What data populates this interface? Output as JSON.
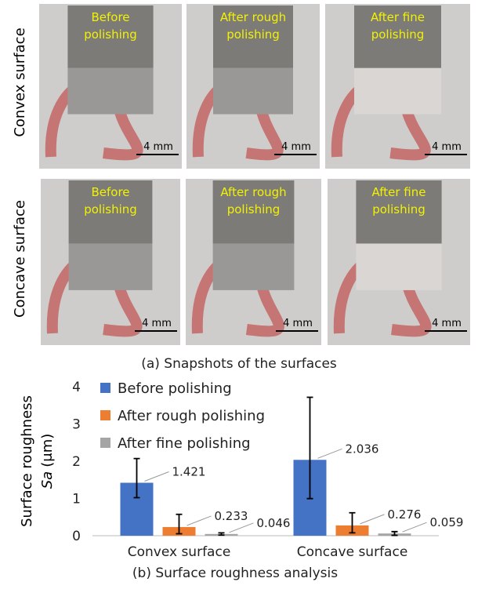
{
  "photos": {
    "caption": "(a) Snapshots of the surfaces",
    "rows": [
      {
        "label": "Convex surface",
        "images": [
          {
            "label_lines": [
              "Before",
              "polishing"
            ],
            "scale": "4 mm"
          },
          {
            "label_lines": [
              "After rough",
              "polishing"
            ],
            "scale": "4 mm"
          },
          {
            "label_lines": [
              "After fine",
              "polishing"
            ],
            "scale": "4 mm"
          }
        ]
      },
      {
        "label": "Concave surface",
        "images": [
          {
            "label_lines": [
              "Before",
              "polishing"
            ],
            "scale": "4 mm"
          },
          {
            "label_lines": [
              "After rough",
              "polishing"
            ],
            "scale": "4 mm"
          },
          {
            "label_lines": [
              "After fine",
              "polishing"
            ],
            "scale": "4 mm"
          }
        ]
      }
    ]
  },
  "chart_data": {
    "type": "bar",
    "caption": "(b) Surface roughness analysis",
    "ylabel": {
      "line1": "Surface roughness",
      "symbol": "Sa",
      "unit": "(μm)"
    },
    "categories": [
      "Convex surface",
      "Concave surface"
    ],
    "series": [
      {
        "name": "Before polishing",
        "color": "#4472c4",
        "values": [
          1.421,
          2.036
        ],
        "errors_minus": [
          0.4,
          1.04
        ],
        "errors_plus": [
          0.65,
          1.68
        ]
      },
      {
        "name": "After rough polishing",
        "color": "#ed7d31",
        "values": [
          0.233,
          0.276
        ],
        "errors_minus": [
          0.18,
          0.2
        ],
        "errors_plus": [
          0.34,
          0.34
        ]
      },
      {
        "name": "After fine polishing",
        "color": "#a5a5a5",
        "values": [
          0.046,
          0.059
        ],
        "errors_minus": [
          0.03,
          0.05
        ],
        "errors_plus": [
          0.03,
          0.05
        ]
      }
    ],
    "ylim": [
      0,
      4
    ],
    "yticks": [
      0,
      1,
      2,
      3,
      4
    ],
    "grid": false,
    "legend": "top-left"
  }
}
